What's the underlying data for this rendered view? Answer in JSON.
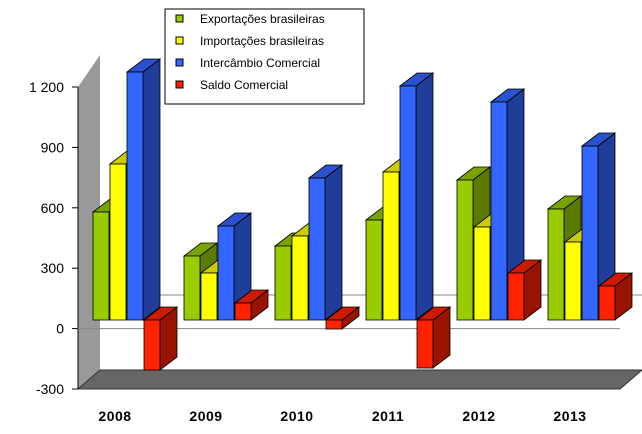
{
  "chart_data": {
    "type": "bar",
    "categories": [
      "2008",
      "2009",
      "2010",
      "2011",
      "2012",
      "2013"
    ],
    "series": [
      {
        "name": "Exportações brasileiras",
        "color": "#99cc00",
        "values": [
          540,
          320,
          370,
          500,
          700,
          555
        ]
      },
      {
        "name": "Importações brasileiras",
        "color": "#ffff00",
        "values": [
          780,
          235,
          420,
          740,
          465,
          390
        ]
      },
      {
        "name": "Intercâmbio  Comercial",
        "color": "#3366ff",
        "values": [
          1240,
          470,
          710,
          1170,
          1090,
          870
        ]
      },
      {
        "name": "Saldo  Comercial",
        "color": "#ff2200",
        "values": [
          -250,
          85,
          -45,
          -240,
          235,
          170
        ]
      }
    ],
    "yticks": [
      "-300",
      "0",
      "300",
      "600",
      "900",
      "1 200"
    ],
    "ylim": [
      -300,
      1200
    ],
    "grid": false,
    "legend_position": "top"
  }
}
